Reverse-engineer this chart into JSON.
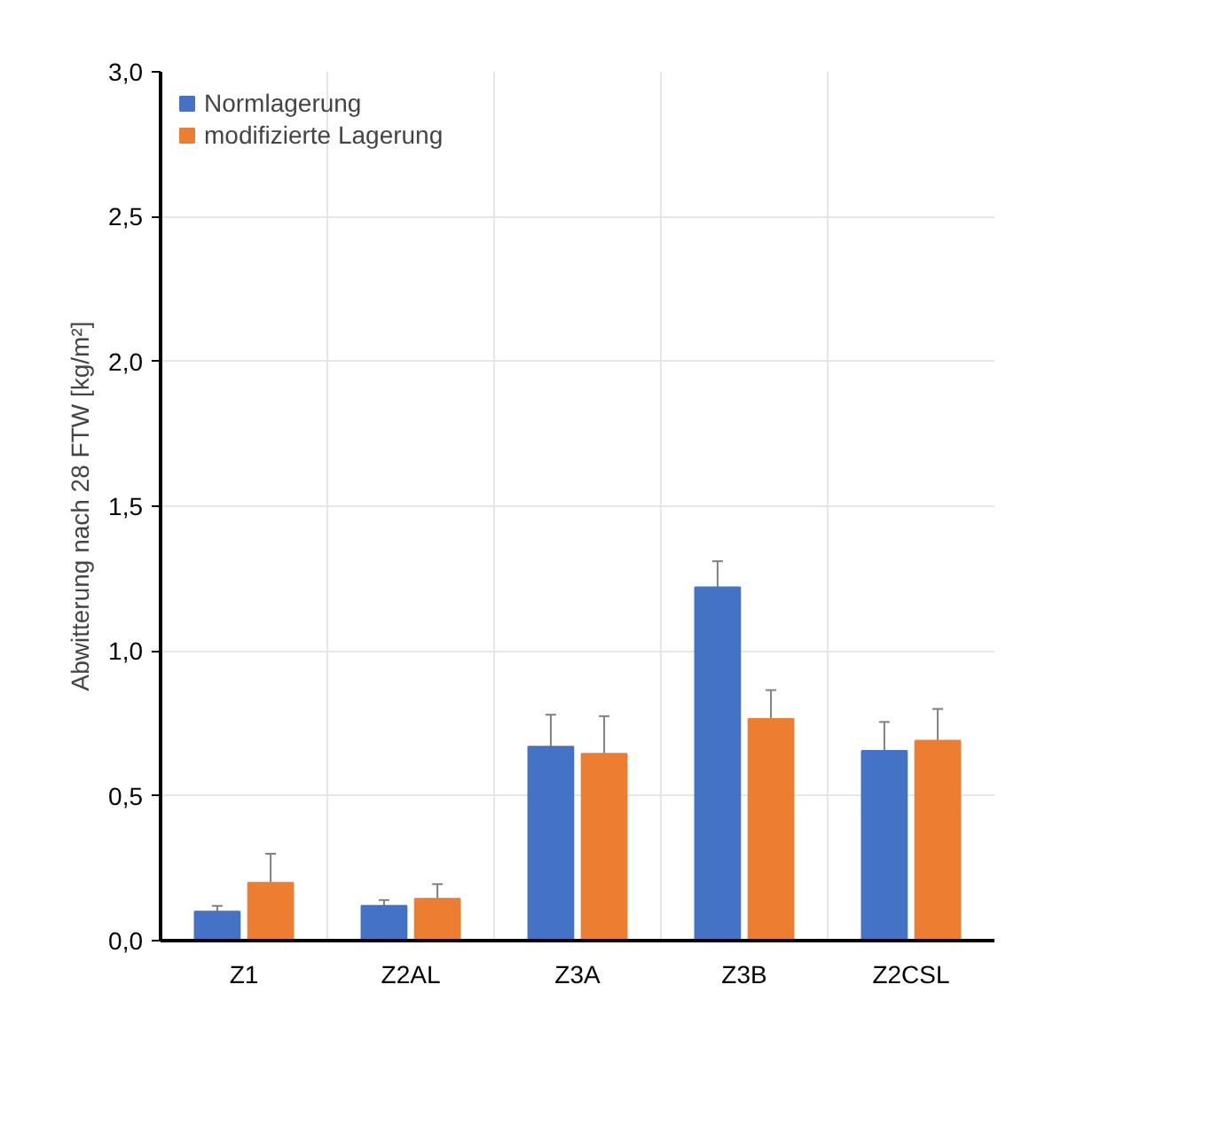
{
  "chart_data": {
    "type": "bar",
    "ylabel": "Abwitterung nach 28 FTW [kg/m²]",
    "categories": [
      "Z1",
      "Z2AL",
      "Z3A",
      "Z3B",
      "Z2CSL"
    ],
    "series": [
      {
        "name": "Normlagerung",
        "color": "#4472c4",
        "values": [
          0.1,
          0.12,
          0.67,
          1.22,
          0.655
        ],
        "errors": [
          0.02,
          0.02,
          0.11,
          0.09,
          0.1
        ]
      },
      {
        "name": "modifizierte Lagerung",
        "color": "#ed7d31",
        "values": [
          0.2,
          0.145,
          0.645,
          0.765,
          0.69
        ],
        "errors": [
          0.1,
          0.05,
          0.13,
          0.1,
          0.11
        ]
      }
    ],
    "ylim": [
      0,
      3.0
    ],
    "yticks": [
      {
        "value": 0,
        "label": "0,0"
      },
      {
        "value": 0.5,
        "label": "0,5"
      },
      {
        "value": 1.0,
        "label": "1,0"
      },
      {
        "value": 1.5,
        "label": "1,5"
      },
      {
        "value": 2.0,
        "label": "2,0"
      },
      {
        "value": 2.5,
        "label": "2,5"
      },
      {
        "value": 3.0,
        "label": "3,0"
      }
    ],
    "grid": true,
    "legend": "top left"
  }
}
